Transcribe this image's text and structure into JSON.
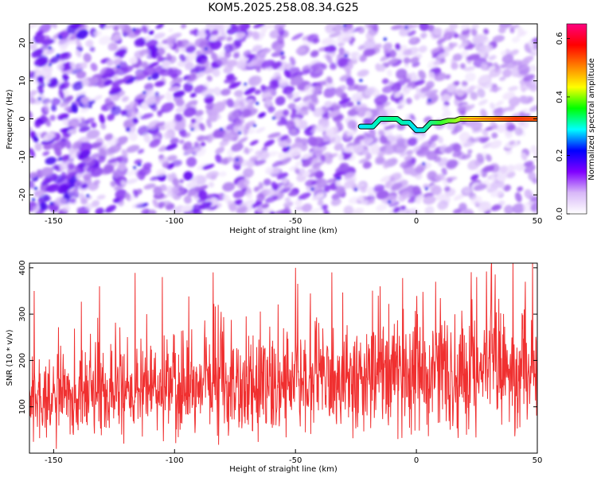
{
  "title": "KOM5.2025.258.08.34.G25",
  "colors": {
    "snr_line": "#f03030",
    "track_core": "#e02020",
    "background": "#ffffff",
    "axis": "#000000"
  },
  "chart_data": [
    {
      "type": "heatmap",
      "name": "spectrogram",
      "xlabel": "Height of straight line (km)",
      "ylabel": "Frequency (Hz)",
      "xlim": [
        -160,
        50
      ],
      "ylim": [
        -25,
        25
      ],
      "xticks": [
        "-150",
        "-100",
        "-50",
        "0",
        "50"
      ],
      "xtick_values": [
        -150,
        -100,
        -50,
        0,
        50
      ],
      "yticks": [
        "-20",
        "-10",
        "0",
        "10",
        "20"
      ],
      "ytick_values": [
        -20,
        -10,
        0,
        10,
        20
      ],
      "colorbar": {
        "label": "Normalized spectral amplitude",
        "range": [
          0.0,
          0.65
        ],
        "ticks": [
          "0.0",
          "0.2",
          "0.4",
          "0.6"
        ],
        "tick_values": [
          0.0,
          0.2,
          0.4,
          0.6
        ],
        "colors": [
          "#ffffff",
          "#d8b8f8",
          "#8000ff",
          "#0000ff",
          "#00ffff",
          "#00ff00",
          "#ffff00",
          "#ff8000",
          "#ff0000",
          "#ff0080"
        ]
      },
      "track": {
        "description": "narrow spectral line",
        "points": [
          [
            -23,
            -2
          ],
          [
            -18,
            -2
          ],
          [
            -15,
            0
          ],
          [
            -8,
            0
          ],
          [
            -6,
            -1
          ],
          [
            -3,
            -1
          ],
          [
            0,
            -3
          ],
          [
            3,
            -3
          ],
          [
            6,
            -1
          ],
          [
            10,
            -1
          ],
          [
            13,
            -0.5
          ],
          [
            16,
            -0.5
          ],
          [
            18,
            0
          ],
          [
            50,
            0
          ]
        ],
        "amplitude_start": 0.2,
        "amplitude_end": 0.6
      }
    },
    {
      "type": "line",
      "name": "snr",
      "xlabel": "Height of straight line (km)",
      "ylabel": "SNR (10 * v/v)",
      "xlim": [
        -160,
        50
      ],
      "ylim": [
        0,
        410
      ],
      "xticks": [
        "-150",
        "-100",
        "-50",
        "0",
        "50"
      ],
      "xtick_values": [
        -150,
        -100,
        -50,
        0,
        50
      ],
      "yticks": [
        "100",
        "200",
        "300",
        "400"
      ],
      "ytick_values": [
        100,
        200,
        300,
        400
      ],
      "series": {
        "name": "SNR",
        "noise_floor_start": 25,
        "noise_floor_end": 70,
        "mean_start": 120,
        "mean_end": 180,
        "spread_start": 70,
        "spread_end": 120,
        "peaks": [
          [
            -158,
            350
          ],
          [
            -131,
            360
          ],
          [
            -105,
            380
          ],
          [
            -84,
            390
          ],
          [
            -50,
            400
          ],
          [
            -35,
            390
          ],
          [
            -15,
            360
          ],
          [
            8,
            370
          ],
          [
            25,
            380
          ],
          [
            31,
            400
          ],
          [
            40,
            410
          ],
          [
            45,
            370
          ]
        ]
      }
    }
  ]
}
